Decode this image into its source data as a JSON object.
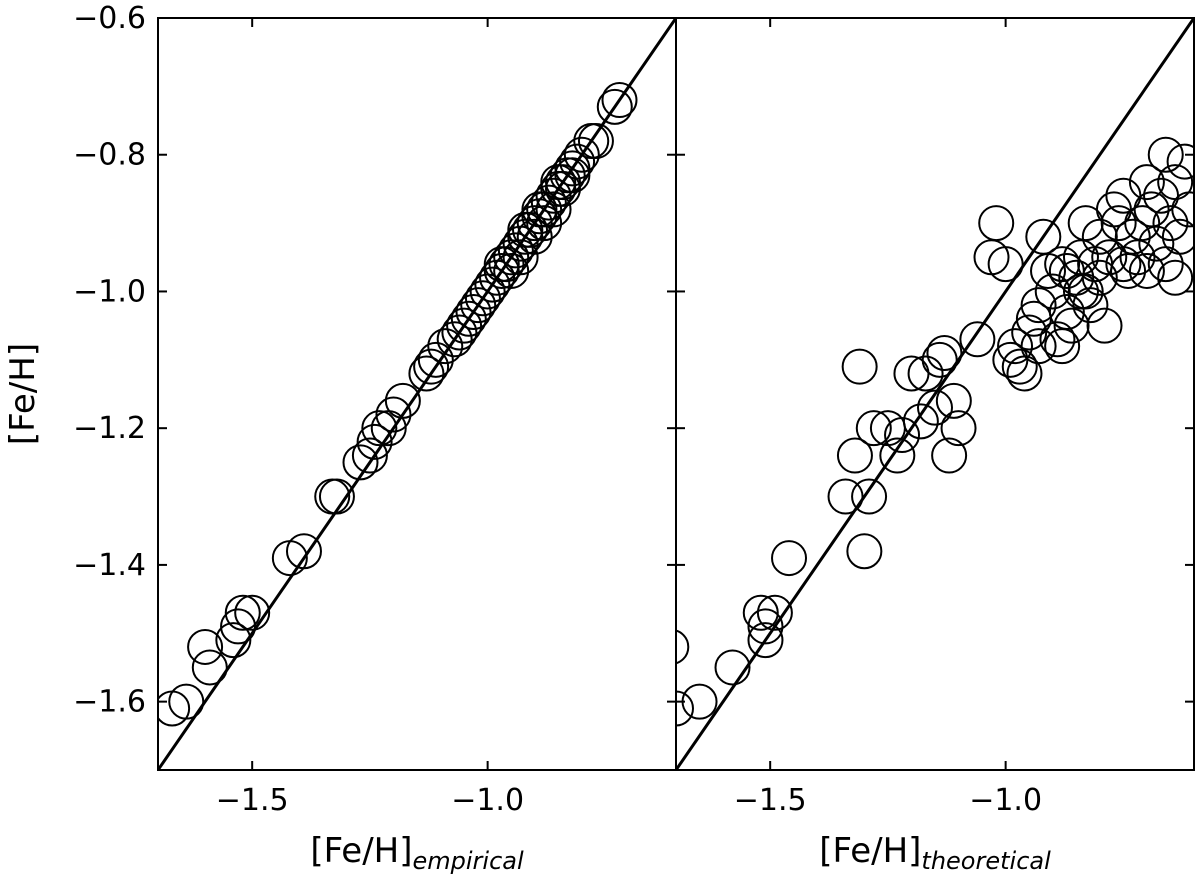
{
  "ylabel": "[Fe/H]",
  "chart_data": [
    {
      "type": "scatter",
      "panel": "left",
      "xlabel_main": "[Fe/H]",
      "xlabel_sub": "empirical",
      "xlim": [
        -1.7,
        -0.6
      ],
      "ylim": [
        -1.7,
        -0.6
      ],
      "xticks": [
        -1.5,
        -1.0
      ],
      "xtick_labels": [
        "−1.5",
        "−1.0"
      ],
      "yticks": [
        -1.6,
        -1.4,
        -1.2,
        -1.0,
        -0.8,
        -0.6
      ],
      "ytick_labels": [
        "−1.6",
        "−1.4",
        "−1.2",
        "−1.0",
        "−0.8",
        "−0.6"
      ],
      "marker": "open-circle",
      "reference_line": "y = x",
      "points": [
        [
          -1.67,
          -1.61
        ],
        [
          -1.64,
          -1.6
        ],
        [
          -1.59,
          -1.55
        ],
        [
          -1.6,
          -1.52
        ],
        [
          -1.54,
          -1.51
        ],
        [
          -1.53,
          -1.49
        ],
        [
          -1.52,
          -1.47
        ],
        [
          -1.5,
          -1.47
        ],
        [
          -1.42,
          -1.39
        ],
        [
          -1.39,
          -1.38
        ],
        [
          -1.33,
          -1.3
        ],
        [
          -1.32,
          -1.3
        ],
        [
          -1.27,
          -1.25
        ],
        [
          -1.25,
          -1.24
        ],
        [
          -1.24,
          -1.22
        ],
        [
          -1.23,
          -1.2
        ],
        [
          -1.21,
          -1.2
        ],
        [
          -1.2,
          -1.18
        ],
        [
          -1.18,
          -1.16
        ],
        [
          -1.13,
          -1.12
        ],
        [
          -1.12,
          -1.11
        ],
        [
          -1.11,
          -1.1
        ],
        [
          -1.09,
          -1.08
        ],
        [
          -1.07,
          -1.07
        ],
        [
          -1.06,
          -1.06
        ],
        [
          -1.05,
          -1.05
        ],
        [
          -1.04,
          -1.04
        ],
        [
          -1.03,
          -1.03
        ],
        [
          -1.02,
          -1.02
        ],
        [
          -1.01,
          -1.01
        ],
        [
          -1.0,
          -1.0
        ],
        [
          -0.99,
          -0.99
        ],
        [
          -0.98,
          -0.98
        ],
        [
          -0.97,
          -0.97
        ],
        [
          -0.96,
          -0.96
        ],
        [
          -0.95,
          -0.95
        ],
        [
          -0.94,
          -0.94
        ],
        [
          -0.93,
          -0.93
        ],
        [
          -0.92,
          -0.92
        ],
        [
          -0.91,
          -0.91
        ],
        [
          -0.9,
          -0.9
        ],
        [
          -0.89,
          -0.89
        ],
        [
          -0.88,
          -0.88
        ],
        [
          -0.87,
          -0.87
        ],
        [
          -0.86,
          -0.86
        ],
        [
          -0.85,
          -0.85
        ],
        [
          -0.84,
          -0.84
        ],
        [
          -0.83,
          -0.83
        ],
        [
          -0.82,
          -0.82
        ],
        [
          -0.81,
          -0.81
        ],
        [
          -0.8,
          -0.8
        ],
        [
          -0.78,
          -0.78
        ],
        [
          -0.77,
          -0.78
        ],
        [
          -0.73,
          -0.73
        ],
        [
          -0.72,
          -0.72
        ],
        [
          -0.95,
          -0.97
        ],
        [
          -0.97,
          -0.96
        ],
        [
          -0.93,
          -0.95
        ],
        [
          -0.9,
          -0.92
        ],
        [
          -0.88,
          -0.9
        ],
        [
          -0.86,
          -0.88
        ],
        [
          -0.84,
          -0.85
        ],
        [
          -0.92,
          -0.91
        ],
        [
          -0.89,
          -0.88
        ],
        [
          -0.85,
          -0.84
        ],
        [
          -0.82,
          -0.83
        ]
      ]
    },
    {
      "type": "scatter",
      "panel": "right",
      "xlabel_main": "[Fe/H]",
      "xlabel_sub": "theoretical",
      "xlim": [
        -1.7,
        -0.6
      ],
      "ylim": [
        -1.7,
        -0.6
      ],
      "xticks": [
        -1.5,
        -1.0
      ],
      "xtick_labels": [
        "−1.5",
        "−1.0"
      ],
      "marker": "open-circle",
      "reference_line": "y = x",
      "points": [
        [
          -1.71,
          -1.52
        ],
        [
          -1.7,
          -1.61
        ],
        [
          -1.65,
          -1.6
        ],
        [
          -1.58,
          -1.55
        ],
        [
          -1.52,
          -1.47
        ],
        [
          -1.51,
          -1.49
        ],
        [
          -1.51,
          -1.51
        ],
        [
          -1.49,
          -1.47
        ],
        [
          -1.46,
          -1.39
        ],
        [
          -1.34,
          -1.3
        ],
        [
          -1.32,
          -1.24
        ],
        [
          -1.31,
          -1.11
        ],
        [
          -1.3,
          -1.38
        ],
        [
          -1.29,
          -1.3
        ],
        [
          -1.28,
          -1.2
        ],
        [
          -1.25,
          -1.2
        ],
        [
          -1.23,
          -1.24
        ],
        [
          -1.22,
          -1.21
        ],
        [
          -1.2,
          -1.12
        ],
        [
          -1.18,
          -1.19
        ],
        [
          -1.17,
          -1.12
        ],
        [
          -1.15,
          -1.17
        ],
        [
          -1.14,
          -1.1
        ],
        [
          -1.13,
          -1.09
        ],
        [
          -1.12,
          -1.24
        ],
        [
          -1.11,
          -1.16
        ],
        [
          -1.1,
          -1.2
        ],
        [
          -1.06,
          -1.07
        ],
        [
          -1.03,
          -0.95
        ],
        [
          -1.02,
          -0.9
        ],
        [
          -1.0,
          -0.96
        ],
        [
          -0.99,
          -1.1
        ],
        [
          -0.98,
          -1.08
        ],
        [
          -0.97,
          -1.11
        ],
        [
          -0.96,
          -1.12
        ],
        [
          -0.95,
          -1.06
        ],
        [
          -0.94,
          -1.04
        ],
        [
          -0.93,
          -1.08
        ],
        [
          -0.92,
          -0.92
        ],
        [
          -0.91,
          -0.97
        ],
        [
          -0.9,
          -1.0
        ],
        [
          -0.89,
          -1.07
        ],
        [
          -0.88,
          -0.96
        ],
        [
          -0.87,
          -1.03
        ],
        [
          -0.86,
          -1.05
        ],
        [
          -0.85,
          -0.98
        ],
        [
          -0.84,
          -0.95
        ],
        [
          -0.83,
          -1.0
        ],
        [
          -0.82,
          -1.02
        ],
        [
          -0.81,
          -0.96
        ],
        [
          -0.8,
          -0.92
        ],
        [
          -0.79,
          -1.05
        ],
        [
          -0.78,
          -0.95
        ],
        [
          -0.77,
          -0.88
        ],
        [
          -0.76,
          -0.9
        ],
        [
          -0.75,
          -0.86
        ],
        [
          -0.74,
          -0.97
        ],
        [
          -0.73,
          -0.92
        ],
        [
          -0.72,
          -0.95
        ],
        [
          -0.71,
          -0.9
        ],
        [
          -0.7,
          -0.84
        ],
        [
          -0.69,
          -0.88
        ],
        [
          -0.68,
          -0.93
        ],
        [
          -0.67,
          -0.86
        ],
        [
          -0.66,
          -0.8
        ],
        [
          -0.65,
          -0.9
        ],
        [
          -0.64,
          -0.84
        ],
        [
          -0.63,
          -0.92
        ],
        [
          -0.62,
          -0.81
        ],
        [
          -0.61,
          -0.88
        ],
        [
          -0.87,
          -0.97
        ],
        [
          -0.83,
          -0.9
        ],
        [
          -0.8,
          -0.98
        ],
        [
          -0.75,
          -0.96
        ],
        [
          -0.7,
          -0.97
        ],
        [
          -0.93,
          -1.02
        ],
        [
          -0.88,
          -1.08
        ],
        [
          -0.84,
          -1.0
        ],
        [
          -0.64,
          -0.98
        ],
        [
          -0.66,
          -0.96
        ]
      ]
    }
  ]
}
